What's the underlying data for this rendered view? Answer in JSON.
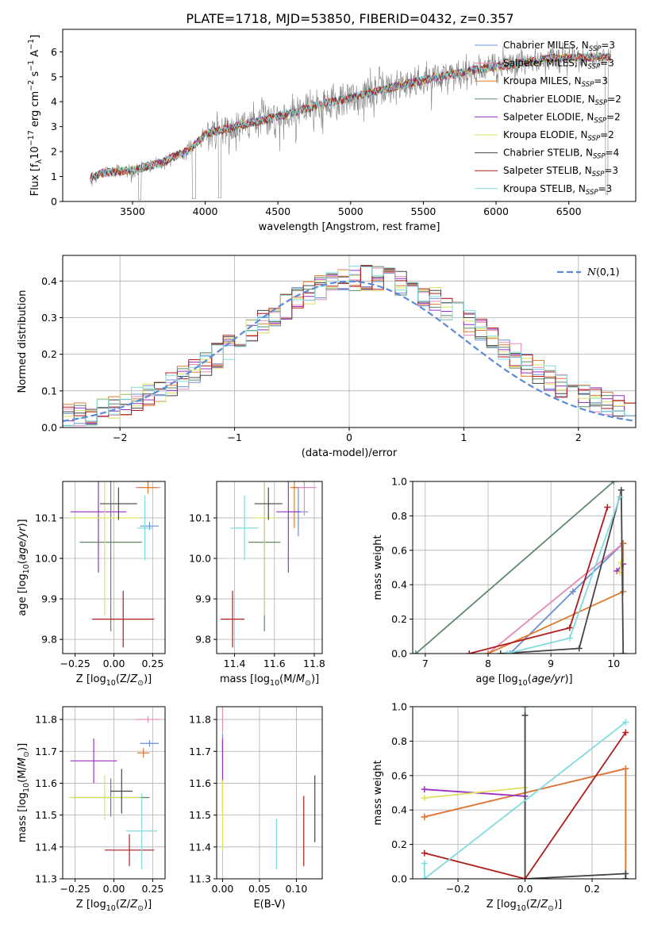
{
  "figure_title": "PLATE=1718, MJD=53850, FIBERID=0432, z=0.357",
  "colors": {
    "Chabrier MILES": "#6b8fd6",
    "Salpeter MILES": "#e58ab8",
    "Kroupa MILES": "#e07b30",
    "Chabrier ELODIE": "#5e8a6a",
    "Salpeter ELODIE": "#9b30c0",
    "Kroupa ELODIE": "#dde060",
    "Chabrier STELIB": "#454545",
    "Salpeter STELIB": "#b01c1c",
    "Kroupa STELIB": "#80dbe0",
    "data": "#808080",
    "normal": "#5b8bd6"
  },
  "chart_data": [
    {
      "id": "spectrum",
      "type": "line",
      "title": "",
      "xlabel": "wavelength [Angstrom, rest frame]",
      "ylabel": "Flux [f_λ10^-17 erg cm^-2 s^-1 A^-1]",
      "xlim": [
        3020,
        6960
      ],
      "ylim": [
        0,
        6.9
      ],
      "xticks": [
        3500,
        4000,
        4500,
        5000,
        5500,
        6000,
        6500
      ],
      "yticks": [
        0,
        1,
        2,
        3,
        4,
        5,
        6
      ],
      "legend_position": "top-right",
      "legend": [
        {
          "name": "Chabrier MILES",
          "nssp": "3"
        },
        {
          "name": "Salpeter MILES",
          "nssp": "3"
        },
        {
          "name": "Kroupa MILES",
          "nssp": "3"
        },
        {
          "name": "Chabrier ELODIE",
          "nssp": "2"
        },
        {
          "name": "Salpeter ELODIE",
          "nssp": "2"
        },
        {
          "name": "Kroupa ELODIE",
          "nssp": "2"
        },
        {
          "name": "Chabrier STELIB",
          "nssp": "4"
        },
        {
          "name": "Salpeter STELIB",
          "nssp": "3"
        },
        {
          "name": "Kroupa STELIB",
          "nssp": "3"
        }
      ],
      "continuum": {
        "x": [
          3200,
          3300,
          3500,
          3700,
          3900,
          4000,
          4200,
          4500,
          4800,
          5000,
          5300,
          5600,
          6000,
          6400,
          6800
        ],
        "y": [
          0.95,
          1.15,
          1.25,
          1.55,
          2.1,
          2.7,
          3.0,
          3.4,
          3.9,
          4.15,
          4.6,
          5.0,
          5.4,
          5.75,
          5.8
        ]
      },
      "spectrum_range": [
        3210,
        6790
      ]
    },
    {
      "id": "residuals",
      "type": "histogram",
      "xlabel": "(data-model)/error",
      "ylabel": "Normed distribution",
      "xlim": [
        -2.5,
        2.5
      ],
      "ylim": [
        0,
        0.47
      ],
      "xticks": [
        -2,
        -1,
        0,
        1,
        2
      ],
      "yticks": [
        0.0,
        0.1,
        0.2,
        0.3,
        0.4
      ],
      "legend_position": "top-right",
      "normal_label": "N(0,1)",
      "bin_width": 0.1
    },
    {
      "id": "age_vs_Z",
      "type": "errorbar",
      "xlabel": "Z [log10(Z/Z☉)]",
      "ylabel": "age [log10(age/yr)]",
      "xlim": [
        -0.33,
        0.33
      ],
      "ylim": [
        9.765,
        10.19
      ],
      "xticks": [
        -0.25,
        0.0,
        0.25
      ],
      "yticks": [
        9.8,
        9.9,
        10.0,
        10.1
      ],
      "points": [
        {
          "model": "Chabrier MILES",
          "x": 0.23,
          "xerr": 0.06,
          "y": 10.08,
          "yerr": 0.01
        },
        {
          "model": "Salpeter MILES",
          "x": 0.22,
          "xerr": 0.08,
          "y": 10.175,
          "yerr": 0.01
        },
        {
          "model": "Kroupa MILES",
          "x": 0.22,
          "xerr": 0.06,
          "y": 10.175,
          "yerr": 0.015
        },
        {
          "model": "Chabrier ELODIE",
          "x": -0.02,
          "xerr": 0.2,
          "y": 10.04,
          "yerr": 0.22
        },
        {
          "model": "Salpeter ELODIE",
          "x": -0.1,
          "xerr": 0.18,
          "y": 10.115,
          "yerr": 0.15
        },
        {
          "model": "Kroupa ELODIE",
          "x": -0.06,
          "xerr": 0.23,
          "y": 10.1,
          "yerr": 0.24
        },
        {
          "model": "Chabrier STELIB",
          "x": 0.03,
          "xerr": 0.12,
          "y": 10.135,
          "yerr": 0.04
        },
        {
          "model": "Salpeter STELIB",
          "x": 0.06,
          "xerr": 0.2,
          "y": 9.85,
          "yerr": 0.07
        },
        {
          "model": "Kroupa STELIB",
          "x": 0.2,
          "xerr": 0.05,
          "y": 10.075,
          "yerr": 0.08
        }
      ]
    },
    {
      "id": "age_vs_mass",
      "type": "errorbar",
      "xlabel": "mass [log10(M/M☉)]",
      "ylabel": "",
      "xlim": [
        11.31,
        11.84
      ],
      "ylim": [
        9.765,
        10.19
      ],
      "xticks": [
        11.4,
        11.6,
        11.8
      ],
      "yticks": [
        9.8,
        9.9,
        10.0,
        10.1
      ],
      "points": [
        {
          "model": "Chabrier MILES",
          "x": 11.72,
          "xerr": 0.05,
          "y": 10.115,
          "yerr": 0.06
        },
        {
          "model": "Salpeter MILES",
          "x": 11.75,
          "xerr": 0.06,
          "y": 10.175,
          "yerr": 0.07
        },
        {
          "model": "Kroupa MILES",
          "x": 11.7,
          "xerr": 0.02,
          "y": 10.175,
          "yerr": 0.1
        },
        {
          "model": "Chabrier ELODIE",
          "x": 11.55,
          "xerr": 0.08,
          "y": 10.04,
          "yerr": 0.22
        },
        {
          "model": "Salpeter ELODIE",
          "x": 11.67,
          "xerr": 0.06,
          "y": 10.115,
          "yerr": 0.15
        },
        {
          "model": "Kroupa ELODIE",
          "x": 11.55,
          "xerr": 0.06,
          "y": 10.1,
          "yerr": 0.24
        },
        {
          "model": "Chabrier STELIB",
          "x": 11.57,
          "xerr": 0.07,
          "y": 10.135,
          "yerr": 0.04
        },
        {
          "model": "Salpeter STELIB",
          "x": 11.39,
          "xerr": 0.06,
          "y": 9.85,
          "yerr": 0.07
        },
        {
          "model": "Kroupa STELIB",
          "x": 11.45,
          "xerr": 0.07,
          "y": 10.075,
          "yerr": 0.08
        }
      ]
    },
    {
      "id": "weight_vs_age",
      "type": "line",
      "xlabel": "age [log10(age/yr)]",
      "ylabel": "mass weight",
      "xlim": [
        6.8,
        10.35
      ],
      "ylim": [
        0,
        1.0
      ],
      "xticks": [
        7,
        8,
        9,
        10
      ],
      "yticks": [
        0.0,
        0.2,
        0.4,
        0.6,
        0.8,
        1.0
      ],
      "series": [
        {
          "model": "Chabrier MILES",
          "x": [
            8.35,
            9.35,
            10.15
          ],
          "y": [
            0.0,
            0.36,
            0.64
          ]
        },
        {
          "model": "Salpeter MILES",
          "x": [
            8.0,
            10.15
          ],
          "y": [
            0.0,
            0.64
          ]
        },
        {
          "model": "Kroupa MILES",
          "x": [
            8.0,
            10.15,
            10.15
          ],
          "y": [
            0.0,
            0.36,
            0.64
          ]
        },
        {
          "model": "Chabrier ELODIE",
          "x": [
            6.85,
            10.0
          ],
          "y": [
            0.0,
            1.0
          ]
        },
        {
          "model": "Salpeter ELODIE",
          "x": [
            10.05,
            10.15
          ],
          "y": [
            0.48,
            0.52
          ]
        },
        {
          "model": "Kroupa ELODIE",
          "x": [
            10.1,
            10.12
          ],
          "y": [
            0.47,
            0.53
          ]
        },
        {
          "model": "Chabrier STELIB",
          "x": [
            8.2,
            9.45,
            10.12,
            10.15
          ],
          "y": [
            0.0,
            0.03,
            0.95,
            0.0
          ]
        },
        {
          "model": "Salpeter STELIB",
          "x": [
            7.7,
            9.3,
            9.9
          ],
          "y": [
            0.0,
            0.15,
            0.85
          ]
        },
        {
          "model": "Kroupa STELIB",
          "x": [
            8.3,
            9.3,
            10.1
          ],
          "y": [
            0.0,
            0.09,
            0.91
          ]
        }
      ]
    },
    {
      "id": "mass_vs_Z",
      "type": "errorbar",
      "xlabel": "Z [log10(Z/Z☉)]",
      "ylabel": "mass [log10(M/M☉)]",
      "xlim": [
        -0.33,
        0.33
      ],
      "ylim": [
        11.3,
        11.84
      ],
      "xticks": [
        -0.25,
        0.0,
        0.25
      ],
      "yticks": [
        11.3,
        11.4,
        11.5,
        11.6,
        11.7,
        11.8
      ],
      "points": [
        {
          "model": "Chabrier MILES",
          "x": 0.23,
          "xerr": 0.06,
          "y": 11.725,
          "yerr": 0.01
        },
        {
          "model": "Salpeter MILES",
          "x": 0.22,
          "xerr": 0.08,
          "y": 11.8,
          "yerr": 0.01
        },
        {
          "model": "Kroupa MILES",
          "x": 0.19,
          "xerr": 0.04,
          "y": 11.695,
          "yerr": 0.015
        },
        {
          "model": "Chabrier ELODIE",
          "x": -0.02,
          "xerr": 0.25,
          "y": 11.555,
          "yerr": 0.06
        },
        {
          "model": "Salpeter ELODIE",
          "x": -0.13,
          "xerr": 0.15,
          "y": 11.67,
          "yerr": 0.07
        },
        {
          "model": "Kroupa ELODIE",
          "x": -0.06,
          "xerr": 0.23,
          "y": 11.555,
          "yerr": 0.07
        },
        {
          "model": "Chabrier STELIB",
          "x": 0.05,
          "xerr": 0.07,
          "y": 11.575,
          "yerr": 0.07
        },
        {
          "model": "Salpeter STELIB",
          "x": 0.1,
          "xerr": 0.16,
          "y": 11.39,
          "yerr": 0.05
        },
        {
          "model": "Kroupa STELIB",
          "x": 0.18,
          "xerr": 0.1,
          "y": 11.45,
          "yerr": 0.12
        }
      ]
    },
    {
      "id": "mass_vs_EBV",
      "type": "errorbar",
      "xlabel": "E(B-V)",
      "ylabel": "",
      "xlim": [
        -0.008,
        0.135
      ],
      "ylim": [
        11.3,
        11.84
      ],
      "xticks": [
        0.0,
        0.05,
        0.1
      ],
      "yticks": [
        11.3,
        11.4,
        11.5,
        11.6,
        11.7,
        11.8
      ],
      "points": [
        {
          "model": "Chabrier MILES",
          "x": 0.0,
          "xerr": 0.0,
          "y": 11.725,
          "yerr": 0.03
        },
        {
          "model": "Salpeter MILES",
          "x": 0.0,
          "xerr": 0.0,
          "y": 11.8,
          "yerr": 0.04
        },
        {
          "model": "Kroupa MILES",
          "x": 0.0,
          "xerr": 0.0,
          "y": 11.695,
          "yerr": 0.02
        },
        {
          "model": "Chabrier ELODIE",
          "x": 0.0,
          "xerr": 0.0,
          "y": 11.555,
          "yerr": 0.04
        },
        {
          "model": "Salpeter ELODIE",
          "x": 0.0,
          "xerr": 0.0,
          "y": 11.67,
          "yerr": 0.07
        },
        {
          "model": "Kroupa ELODIE",
          "x": 0.0,
          "xerr": 0.0,
          "y": 11.5,
          "yerr": 0.11
        },
        {
          "model": "Chabrier STELIB",
          "x": 0.125,
          "xerr": 0.0,
          "y": 11.52,
          "yerr": 0.105
        },
        {
          "model": "Salpeter STELIB",
          "x": 0.11,
          "xerr": 0.0,
          "y": 11.45,
          "yerr": 0.11
        },
        {
          "model": "Kroupa STELIB",
          "x": 0.073,
          "xerr": 0.0,
          "y": 11.41,
          "yerr": 0.08
        }
      ]
    },
    {
      "id": "weight_vs_Z",
      "type": "line",
      "xlabel": "Z [log10(Z/Z☉)]",
      "ylabel": "mass weight",
      "xlim": [
        -0.335,
        0.33
      ],
      "ylim": [
        0,
        1.0
      ],
      "xticks": [
        -0.2,
        0.0,
        0.2
      ],
      "yticks": [
        0.0,
        0.2,
        0.4,
        0.6,
        0.8,
        1.0
      ],
      "series": [
        {
          "model": "Chabrier MILES",
          "x": [
            -0.3,
            0.3,
            0.3
          ],
          "y": [
            0.36,
            0.64,
            0.0
          ]
        },
        {
          "model": "Salpeter MILES",
          "x": [
            -0.3,
            0.3
          ],
          "y": [
            0.36,
            0.64
          ]
        },
        {
          "model": "Kroupa MILES",
          "x": [
            -0.3,
            0.3,
            0.3
          ],
          "y": [
            0.36,
            0.64,
            0.0
          ]
        },
        {
          "model": "Chabrier ELODIE",
          "x": [
            0.0,
            0.0
          ],
          "y": [
            0.0,
            1.0
          ]
        },
        {
          "model": "Salpeter ELODIE",
          "x": [
            -0.3,
            0.0
          ],
          "y": [
            0.52,
            0.48
          ]
        },
        {
          "model": "Kroupa ELODIE",
          "x": [
            -0.3,
            0.0
          ],
          "y": [
            0.47,
            0.53
          ]
        },
        {
          "model": "Chabrier STELIB",
          "x": [
            0.0,
            0.0,
            0.3,
            0.3
          ],
          "y": [
            0.95,
            0.0,
            0.03,
            0.0
          ]
        },
        {
          "model": "Salpeter STELIB",
          "x": [
            -0.3,
            0.0,
            0.3
          ],
          "y": [
            0.15,
            0.0,
            0.85
          ]
        },
        {
          "model": "Kroupa STELIB",
          "x": [
            -0.3,
            -0.3,
            0.3
          ],
          "y": [
            0.09,
            0.0,
            0.91
          ]
        }
      ]
    }
  ]
}
